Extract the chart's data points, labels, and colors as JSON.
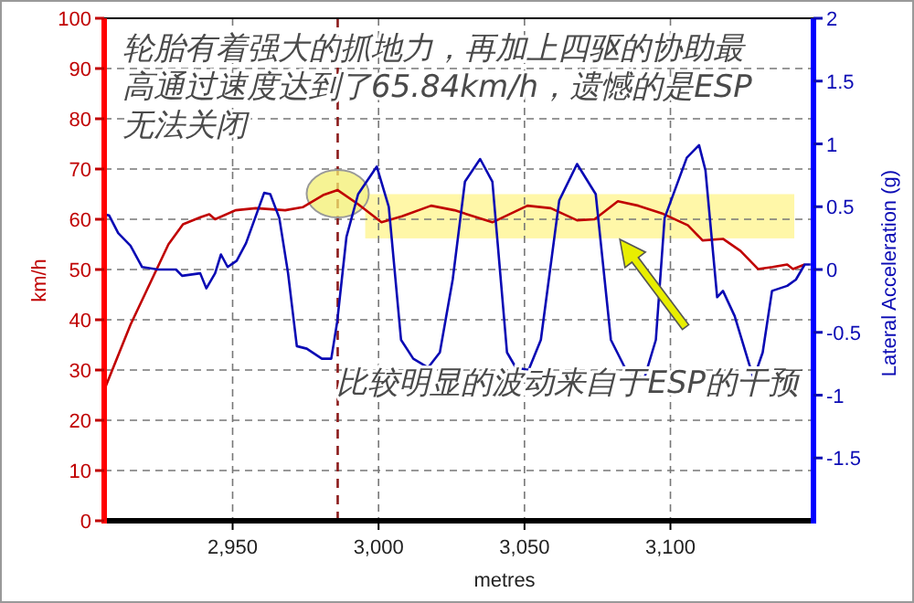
{
  "chart_data": {
    "type": "line",
    "xlabel": "metres",
    "ylabel": "km/h",
    "y2label": "Lateral Acceleration (g)",
    "annotations": [
      "轮胎有着强大的抓地力，再加上四驱的协助最高通过速度达到了65.84km/h，遗憾的是ESP无法关闭",
      "比较明显的波动来自于ESP的干预"
    ],
    "xlim": [
      2906,
      3149
    ],
    "xticks": [
      {
        "value": 2950,
        "label": "2,950"
      },
      {
        "value": 3000,
        "label": "3,000"
      },
      {
        "value": 3050,
        "label": "3,050"
      },
      {
        "value": 3100,
        "label": "3,100"
      }
    ],
    "ylim": [
      0,
      100
    ],
    "yticks": [
      0,
      10,
      20,
      30,
      40,
      50,
      60,
      70,
      80,
      90,
      100
    ],
    "y2lim": [
      -2,
      2
    ],
    "y2ticks": [
      -1.5,
      -1,
      -0.5,
      0,
      0.5,
      1,
      1.5,
      2
    ],
    "grid": true,
    "ref_lines": [
      {
        "axis": "x",
        "value": 2986,
        "color": "#8b1a1a",
        "line_style": "dashed"
      }
    ],
    "series": [
      {
        "color": "#c00000",
        "x": [
          2906,
          2915,
          2928,
          2933,
          2939,
          2942,
          2944,
          2951,
          2958,
          2968,
          2974,
          2981,
          2986,
          2993,
          3001,
          3008,
          3018,
          3026,
          3039,
          3051,
          3059,
          3068,
          3074,
          3082,
          3089,
          3097,
          3106,
          3111,
          3118,
          3124,
          3130,
          3135,
          3140,
          3142,
          3146
        ],
        "values": [
          26,
          39,
          55,
          59,
          60.4,
          61,
          60,
          61.8,
          62.2,
          61.8,
          62.4,
          64.8,
          65.8,
          63,
          59.4,
          60.6,
          62.7,
          61.8,
          59.4,
          62.7,
          62.2,
          59.8,
          60,
          63.6,
          62.7,
          61.2,
          58.8,
          55.8,
          56.1,
          53.7,
          50.1,
          50.5,
          51,
          50.1,
          51
        ]
      },
      {
        "color": "#0a0ab4",
        "axis": "y2",
        "x": [
          2906,
          2907.7,
          2910.8,
          2915,
          2919,
          2924.4,
          2930.6,
          2932.7,
          2938.9,
          2941,
          2944,
          2946,
          2948.3,
          2951.4,
          2954.6,
          2957.7,
          2960.8,
          2962.9,
          2966,
          2969,
          2972,
          2975.4,
          2980.6,
          2983.8,
          2985.8,
          2989,
          2993,
          2999.4,
          3003.5,
          3007.7,
          3011.9,
          3017,
          3021,
          3025.4,
          3029.6,
          3034.8,
          3039,
          3044,
          3047,
          3051.4,
          3055.6,
          3061.9,
          3068,
          3074.4,
          3079.6,
          3084.8,
          3091,
          3095,
          3098,
          3105.6,
          3109.8,
          3112,
          3116,
          3118,
          3122,
          3128.5,
          3131.6,
          3134.8,
          3140,
          3143,
          3146,
          3148
        ],
        "values": [
          0.44,
          0.43,
          0.29,
          0.19,
          0.02,
          0,
          0,
          -0.05,
          -0.03,
          -0.15,
          -0.03,
          0.12,
          0.02,
          0.07,
          0.21,
          0.41,
          0.61,
          0.6,
          0.41,
          -0.03,
          -0.61,
          -0.63,
          -0.71,
          -0.71,
          -0.42,
          0.26,
          0.6,
          0.82,
          0.5,
          -0.56,
          -0.71,
          -0.78,
          -0.66,
          -0.08,
          0.7,
          0.88,
          0.7,
          -0.66,
          -0.78,
          -0.8,
          -0.56,
          0.55,
          0.84,
          0.6,
          -0.56,
          -0.8,
          -0.87,
          -0.56,
          0.41,
          0.89,
          0.99,
          0.79,
          -0.22,
          -0.17,
          -0.37,
          -0.87,
          -0.66,
          -0.17,
          -0.13,
          -0.08,
          0.04,
          0.04
        ]
      }
    ]
  }
}
